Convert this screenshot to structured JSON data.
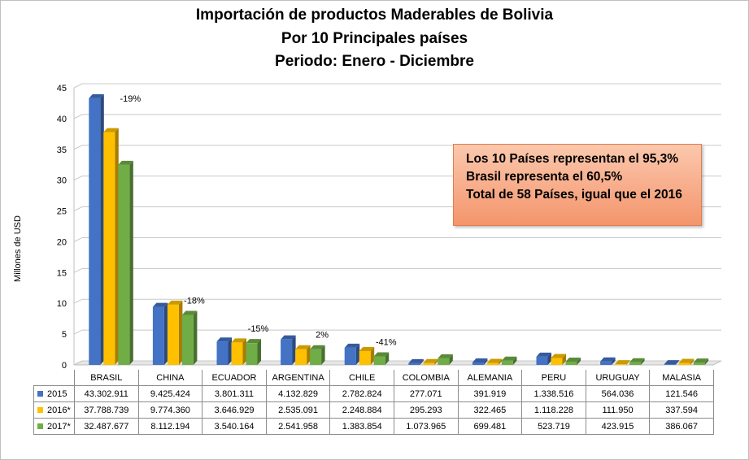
{
  "chart_data": {
    "type": "bar",
    "title": "Importación de productos Maderables de Bolivia",
    "subtitle": "Por 10 Principales países",
    "period": "Periodo: Enero - Diciembre",
    "ylabel": "Millones de USD",
    "ylim": [
      0,
      45
    ],
    "yticks": [
      "0",
      "5",
      "10",
      "15",
      "20",
      "25",
      "30",
      "35",
      "40",
      "45"
    ],
    "grid": true,
    "categories": [
      "BRASIL",
      "CHINA",
      "ECUADOR",
      "ARGENTINA",
      "CHILE",
      "COLOMBIA",
      "ALEMANIA",
      "PERU",
      "URUGUAY",
      "MALASIA"
    ],
    "series": [
      {
        "name": "2015",
        "color": "#4472c4",
        "values": [
          43.302911,
          9.425424,
          3.801311,
          4.132829,
          2.782824,
          0.277071,
          0.391919,
          1.338516,
          0.564036,
          0.121546
        ],
        "labels": [
          "43.302.911",
          "9.425.424",
          "3.801.311",
          "4.132.829",
          "2.782.824",
          "277.071",
          "391.919",
          "1.338.516",
          "564.036",
          "121.546"
        ]
      },
      {
        "name": "2016*",
        "color": "#ffc000",
        "values": [
          37.788739,
          9.77436,
          3.646929,
          2.535091,
          2.248884,
          0.295293,
          0.322465,
          1.118228,
          0.11195,
          0.337594
        ],
        "labels": [
          "37.788.739",
          "9.774.360",
          "3.646.929",
          "2.535.091",
          "2.248.884",
          "295.293",
          "322.465",
          "1.118.228",
          "111.950",
          "337.594"
        ]
      },
      {
        "name": "2017*",
        "color": "#70ad47",
        "values": [
          32.487677,
          8.112194,
          3.540164,
          2.541958,
          1.383854,
          1.073965,
          0.699481,
          0.523719,
          0.423915,
          0.386067
        ],
        "labels": [
          "32.487.677",
          "8.112.194",
          "3.540.164",
          "2.541.958",
          "1.383.854",
          "1.073.965",
          "699.481",
          "523.719",
          "423.915",
          "386.067"
        ]
      }
    ],
    "annotations": [
      {
        "category": "BRASIL",
        "text": "-19%"
      },
      {
        "category": "CHINA",
        "text": "-18%"
      },
      {
        "category": "ECUADOR",
        "text": "-15%"
      },
      {
        "category": "ARGENTINA",
        "text": "2%"
      },
      {
        "category": "CHILE",
        "text": "-41%"
      }
    ],
    "note": [
      "Los 10 Países representan el 95,3%",
      "Brasil representa el 60,5%",
      "Total  de 58 Países, igual que el 2016"
    ]
  }
}
